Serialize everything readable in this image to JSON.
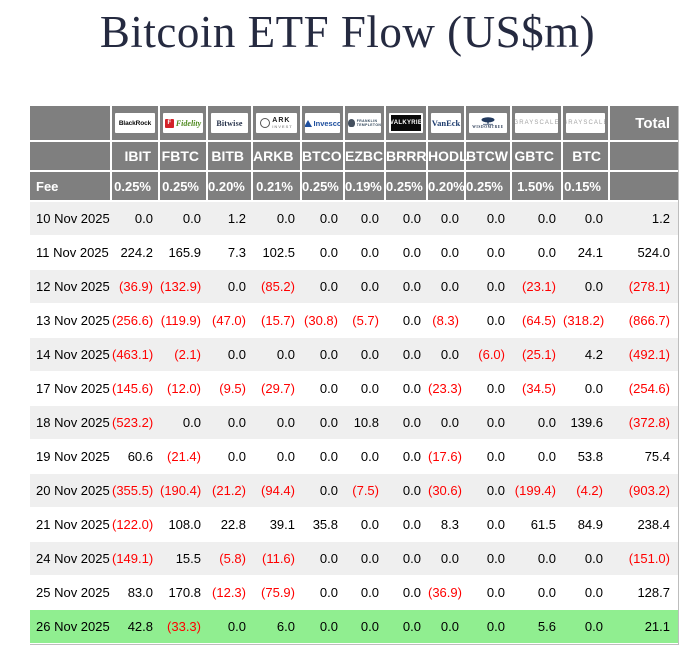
{
  "title": "Bitcoin ETF Flow (US$m)",
  "fee_label": "Fee",
  "total_label": "Total",
  "colors": {
    "title_text": "#252a40",
    "header_bg": "#7f7f7f",
    "header_text": "#ffffff",
    "row_alt_bg": "#efefef",
    "row_bg": "#ffffff",
    "highlight_row_bg": "#90ee90",
    "negative_value": "#ff0000",
    "positive_value": "#000000"
  },
  "providers": [
    {
      "id": "blackrock",
      "logo": "BlackRock",
      "ticker": "IBIT",
      "fee": "0.25%"
    },
    {
      "id": "fidelity",
      "logo": "Fidelity",
      "ticker": "FBTC",
      "fee": "0.25%"
    },
    {
      "id": "bitwise",
      "logo": "Bitwise",
      "ticker": "BITB",
      "fee": "0.20%"
    },
    {
      "id": "ark",
      "logo": "ARK INVEST",
      "ticker": "ARKB",
      "fee": "0.21%"
    },
    {
      "id": "invesco",
      "logo": "Invesco",
      "ticker": "BTCO",
      "fee": "0.25%"
    },
    {
      "id": "franklin",
      "logo": "FRANKLIN TEMPLETON",
      "ticker": "EZBC",
      "fee": "0.19%"
    },
    {
      "id": "valkyrie",
      "logo": "VALKYRIE",
      "ticker": "BRRR",
      "fee": "0.25%"
    },
    {
      "id": "vaneck",
      "logo": "VanEck",
      "ticker": "HODL",
      "fee": "0.20%"
    },
    {
      "id": "wisdomtree",
      "logo": "WISDOMTREE",
      "ticker": "BTCW",
      "fee": "0.25%"
    },
    {
      "id": "grayscale",
      "logo": "GRAYSCALE",
      "ticker": "GBTC",
      "fee": "1.50%"
    },
    {
      "id": "grayscale2",
      "logo": "GRAYSCALE",
      "ticker": "BTC",
      "fee": "0.15%"
    }
  ],
  "chart_data": {
    "type": "table",
    "title": "Bitcoin ETF Flow (US$m)",
    "units": "US$m",
    "negative_format": "parentheses-red",
    "columns": [
      "Date",
      "IBIT",
      "FBTC",
      "BITB",
      "ARKB",
      "BTCO",
      "EZBC",
      "BRRR",
      "HODL",
      "BTCW",
      "GBTC",
      "BTC",
      "Total"
    ],
    "fees": [
      "0.25%",
      "0.25%",
      "0.20%",
      "0.21%",
      "0.25%",
      "0.19%",
      "0.25%",
      "0.20%",
      "0.25%",
      "1.50%",
      "0.15%"
    ],
    "rows": [
      {
        "date": "10 Nov 2025",
        "values": [
          0,
          0,
          1.2,
          0,
          0,
          0,
          0,
          0,
          0,
          0,
          0
        ],
        "total": 1.2,
        "highlight": false
      },
      {
        "date": "11 Nov 2025",
        "values": [
          224.2,
          165.9,
          7.3,
          102.5,
          0,
          0,
          0,
          0,
          0,
          0,
          24.1
        ],
        "total": 524.0,
        "highlight": false
      },
      {
        "date": "12 Nov 2025",
        "values": [
          -36.9,
          -132.9,
          0,
          -85.2,
          0,
          0,
          0,
          0,
          0,
          -23.1,
          0
        ],
        "total": -278.1,
        "highlight": false
      },
      {
        "date": "13 Nov 2025",
        "values": [
          -256.6,
          -119.9,
          -47.0,
          -15.7,
          -30.8,
          -5.7,
          0,
          -8.3,
          0,
          -64.5,
          -318.2
        ],
        "total": -866.7,
        "highlight": false
      },
      {
        "date": "14 Nov 2025",
        "values": [
          -463.1,
          -2.1,
          0,
          0,
          0,
          0,
          0,
          0,
          -6.0,
          -25.1,
          4.2
        ],
        "total": -492.1,
        "highlight": false
      },
      {
        "date": "17 Nov 2025",
        "values": [
          -145.6,
          -12.0,
          -9.5,
          -29.7,
          0,
          0,
          0,
          -23.3,
          0,
          -34.5,
          0
        ],
        "total": -254.6,
        "highlight": false
      },
      {
        "date": "18 Nov 2025",
        "values": [
          -523.2,
          0,
          0,
          0,
          0,
          10.8,
          0,
          0,
          0,
          0,
          139.6
        ],
        "total": -372.8,
        "highlight": false
      },
      {
        "date": "19 Nov 2025",
        "values": [
          60.6,
          -21.4,
          0,
          0,
          0,
          0,
          0,
          -17.6,
          0,
          0,
          53.8
        ],
        "total": 75.4,
        "highlight": false
      },
      {
        "date": "20 Nov 2025",
        "values": [
          -355.5,
          -190.4,
          -21.2,
          -94.4,
          0,
          -7.5,
          0,
          -30.6,
          0,
          -199.4,
          -4.2
        ],
        "total": -903.2,
        "highlight": false
      },
      {
        "date": "21 Nov 2025",
        "values": [
          -122.0,
          108.0,
          22.8,
          39.1,
          35.8,
          0,
          0,
          8.3,
          0,
          61.5,
          84.9
        ],
        "total": 238.4,
        "highlight": false
      },
      {
        "date": "24 Nov 2025",
        "values": [
          -149.1,
          15.5,
          -5.8,
          -11.6,
          0,
          0,
          0,
          0,
          0,
          0,
          0
        ],
        "total": -151.0,
        "highlight": false
      },
      {
        "date": "25 Nov 2025",
        "values": [
          83.0,
          170.8,
          -12.3,
          -75.9,
          0,
          0,
          0,
          -36.9,
          0,
          0,
          0
        ],
        "total": 128.7,
        "highlight": false
      },
      {
        "date": "26 Nov 2025",
        "values": [
          42.8,
          -33.3,
          0,
          6.0,
          0,
          0,
          0,
          0,
          0,
          5.6,
          0
        ],
        "total": 21.1,
        "highlight": true
      }
    ]
  }
}
